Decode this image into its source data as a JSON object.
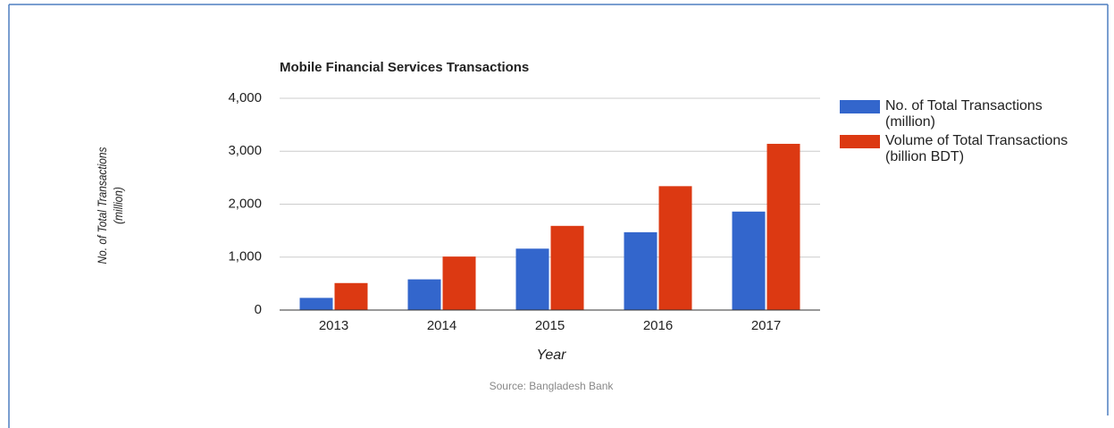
{
  "chart_data": {
    "type": "bar",
    "title": "Mobile Financial Services Transactions",
    "x_label": "Year",
    "y_label": "No. of Total Transactions (million)",
    "source": "Source: Bangladesh Bank",
    "categories": [
      "2013",
      "2014",
      "2015",
      "2016",
      "2017"
    ],
    "series": [
      {
        "name": "No. of Total Transactions (million)",
        "color": "#3366cc",
        "values": [
          230,
          580,
          1160,
          1470,
          1860
        ]
      },
      {
        "name": "Volume of Total Transactions (billion BDT)",
        "color": "#dc3912",
        "values": [
          510,
          1010,
          1590,
          2340,
          3140
        ]
      }
    ],
    "ylim": [
      0,
      4000
    ],
    "yticks": [
      0,
      {
        "value": 1000,
        "label": "1,000"
      },
      {
        "value": 2000,
        "label": "2,000"
      },
      {
        "value": 3000,
        "label": "3,000"
      },
      {
        "value": 4000,
        "label": "4,000"
      }
    ],
    "grid": true,
    "legend": "right"
  }
}
